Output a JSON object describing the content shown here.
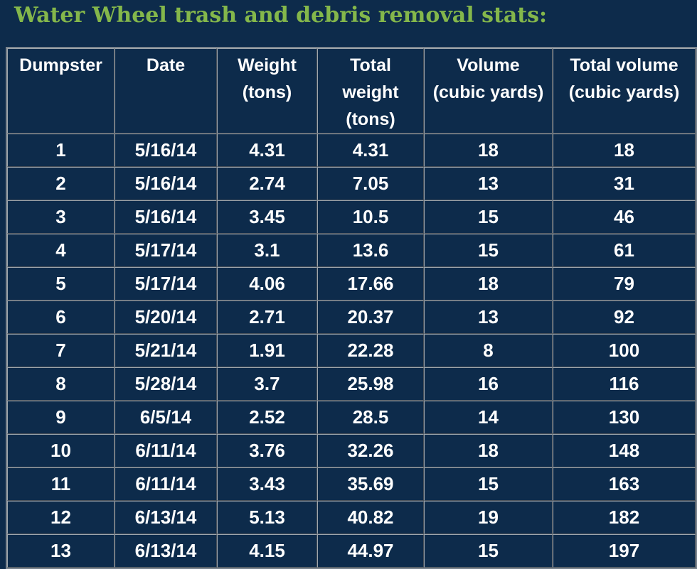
{
  "page": {
    "title": "Water Wheel trash and debris removal stats:"
  },
  "colors": {
    "background": "#0d2b4b",
    "title_green": "#84b74b",
    "text_white": "#ffffff",
    "cell_border_light": "#9ea6ad",
    "cell_border_dark": "#4a525b",
    "table_frame_gray": "#79838d"
  },
  "table": {
    "headers": [
      "Dumpster",
      "Date",
      "Weight\n(tons)",
      "Total\nweight\n(tons)",
      "Volume\n(cubic yards)",
      "Total volume\n(cubic yards)"
    ],
    "col_keys": [
      "dumpster",
      "date",
      "weight",
      "total-weight",
      "volume",
      "total-volume"
    ],
    "rows": [
      [
        "1",
        "5/16/14",
        "4.31",
        "4.31",
        "18",
        "18"
      ],
      [
        "2",
        "5/16/14",
        "2.74",
        "7.05",
        "13",
        "31"
      ],
      [
        "3",
        "5/16/14",
        "3.45",
        "10.5",
        "15",
        "46"
      ],
      [
        "4",
        "5/17/14",
        "3.1",
        "13.6",
        "15",
        "61"
      ],
      [
        "5",
        "5/17/14",
        "4.06",
        "17.66",
        "18",
        "79"
      ],
      [
        "6",
        "5/20/14",
        "2.71",
        "20.37",
        "13",
        "92"
      ],
      [
        "7",
        "5/21/14",
        "1.91",
        "22.28",
        "8",
        "100"
      ],
      [
        "8",
        "5/28/14",
        "3.7",
        "25.98",
        "16",
        "116"
      ],
      [
        "9",
        "6/5/14",
        "2.52",
        "28.5",
        "14",
        "130"
      ],
      [
        "10",
        "6/11/14",
        "3.76",
        "32.26",
        "18",
        "148"
      ],
      [
        "11",
        "6/11/14",
        "3.43",
        "35.69",
        "15",
        "163"
      ],
      [
        "12",
        "6/13/14",
        "5.13",
        "40.82",
        "19",
        "182"
      ],
      [
        "13",
        "6/13/14",
        "4.15",
        "44.97",
        "15",
        "197"
      ]
    ]
  },
  "chart_data": {
    "type": "table",
    "title": "Water Wheel trash and debris removal stats:",
    "columns": [
      "Dumpster",
      "Date",
      "Weight (tons)",
      "Total weight (tons)",
      "Volume (cubic yards)",
      "Total volume (cubic yards)"
    ],
    "rows": [
      [
        1,
        "5/16/14",
        4.31,
        4.31,
        18,
        18
      ],
      [
        2,
        "5/16/14",
        2.74,
        7.05,
        13,
        31
      ],
      [
        3,
        "5/16/14",
        3.45,
        10.5,
        15,
        46
      ],
      [
        4,
        "5/17/14",
        3.1,
        13.6,
        15,
        61
      ],
      [
        5,
        "5/17/14",
        4.06,
        17.66,
        18,
        79
      ],
      [
        6,
        "5/20/14",
        2.71,
        20.37,
        13,
        92
      ],
      [
        7,
        "5/21/14",
        1.91,
        22.28,
        8,
        100
      ],
      [
        8,
        "5/28/14",
        3.7,
        25.98,
        16,
        116
      ],
      [
        9,
        "6/5/14",
        2.52,
        28.5,
        14,
        130
      ],
      [
        10,
        "6/11/14",
        3.76,
        32.26,
        18,
        148
      ],
      [
        11,
        "6/11/14",
        3.43,
        35.69,
        15,
        163
      ],
      [
        12,
        "6/13/14",
        5.13,
        40.82,
        19,
        182
      ],
      [
        13,
        "6/13/14",
        4.15,
        44.97,
        15,
        197
      ]
    ]
  }
}
